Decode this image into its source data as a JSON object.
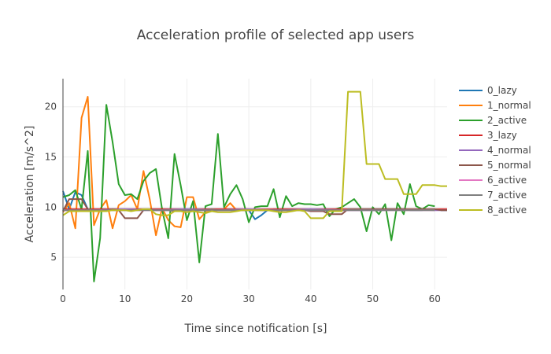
{
  "chart_data": {
    "type": "line",
    "title": "Acceleration profile of selected app users",
    "xlabel": "Time since notification [s]",
    "ylabel": "Acceleration [m/s^2]",
    "xlim": [
      0,
      62
    ],
    "ylim": [
      1.8,
      22.8
    ],
    "x_ticks": [
      0,
      10,
      20,
      30,
      40,
      50,
      60
    ],
    "y_ticks": [
      5,
      10,
      15,
      20
    ],
    "grid": true,
    "legend_position": "right",
    "series": [
      {
        "name": "0_lazy",
        "color": "#1f77b4",
        "x": [
          0,
          1,
          2,
          3,
          4,
          5,
          6,
          7,
          8,
          9,
          10,
          11,
          12,
          13,
          14,
          15,
          16,
          17,
          18,
          19,
          20,
          21,
          22,
          23,
          24,
          25,
          26,
          27,
          28,
          29,
          30,
          31,
          32,
          33,
          34,
          35,
          36,
          37,
          38,
          39,
          40,
          41,
          42,
          43,
          44,
          45,
          46,
          47,
          48,
          49,
          50,
          51,
          52,
          53,
          54,
          55,
          56,
          57,
          58,
          59,
          60,
          61,
          62
        ],
        "y": [
          11.6,
          9.8,
          11.5,
          11.2,
          9.8,
          9.8,
          9.8,
          9.8,
          9.8,
          9.8,
          9.8,
          9.8,
          9.8,
          9.8,
          9.8,
          9.8,
          9.8,
          9.8,
          9.8,
          9.8,
          9.8,
          9.8,
          9.8,
          9.8,
          9.8,
          9.8,
          9.8,
          9.8,
          9.8,
          9.8,
          9.7,
          8.8,
          9.2,
          9.7,
          9.8,
          9.8,
          9.8,
          9.8,
          9.8,
          9.8,
          9.8,
          9.8,
          9.8,
          9.8,
          9.8,
          9.8,
          9.8,
          9.8,
          9.8,
          9.8,
          9.8,
          9.8,
          9.8,
          9.8,
          9.8,
          9.8,
          9.7,
          9.7,
          9.7,
          9.8,
          9.8,
          9.7,
          9.7
        ]
      },
      {
        "name": "1_normal",
        "color": "#ff7f0e",
        "x": [
          0,
          1,
          2,
          3,
          4,
          5,
          6,
          7,
          8,
          9,
          10,
          11,
          12,
          13,
          14,
          15,
          16,
          17,
          18,
          19,
          20,
          21,
          22,
          23,
          24,
          25,
          26,
          27,
          28,
          29,
          30
        ],
        "y": [
          9.5,
          10.4,
          7.9,
          18.9,
          21.0,
          8.2,
          9.8,
          10.7,
          7.9,
          10.2,
          10.6,
          11.2,
          9.8,
          13.6,
          10.8,
          7.2,
          9.9,
          8.7,
          8.1,
          8.0,
          11.0,
          11.0,
          8.8,
          9.5,
          9.6,
          9.7,
          9.8,
          10.4,
          9.7,
          9.8,
          9.8
        ]
      },
      {
        "name": "2_active",
        "color": "#2ca02c",
        "x": [
          0,
          1,
          2,
          3,
          4,
          5,
          6,
          7,
          8,
          9,
          10,
          11,
          12,
          13,
          14,
          15,
          16,
          17,
          18,
          19,
          20,
          21,
          22,
          23,
          24,
          25,
          26,
          27,
          28,
          29,
          30,
          31,
          32,
          33,
          34,
          35,
          36,
          37,
          38,
          39,
          40,
          41,
          42,
          43,
          44,
          45,
          46,
          47,
          48,
          49,
          50,
          51,
          52,
          53,
          54,
          55,
          56,
          57,
          58,
          59,
          60
        ],
        "y": [
          11.0,
          11.2,
          11.7,
          9.8,
          15.6,
          2.6,
          6.9,
          20.2,
          16.5,
          12.3,
          11.2,
          11.3,
          10.8,
          12.6,
          13.4,
          13.8,
          9.8,
          6.9,
          15.3,
          12.2,
          8.7,
          10.6,
          4.5,
          10.1,
          10.3,
          17.3,
          10.0,
          11.3,
          12.2,
          10.8,
          8.5,
          10.0,
          10.1,
          10.1,
          11.8,
          9.0,
          11.1,
          10.1,
          10.4,
          10.3,
          10.3,
          10.2,
          10.3,
          9.1,
          9.8,
          10.0,
          10.4,
          10.8,
          10.0,
          7.6,
          10.0,
          9.3,
          10.3,
          6.7,
          10.4,
          9.3,
          12.3,
          10.1,
          9.8,
          10.2,
          10.1
        ]
      },
      {
        "name": "3_lazy",
        "color": "#d62728",
        "x": [
          0,
          5,
          10,
          15,
          20,
          25,
          30,
          35,
          40,
          45,
          50,
          55,
          60,
          62
        ],
        "y": [
          9.8,
          9.8,
          9.8,
          9.8,
          9.8,
          9.8,
          9.8,
          9.8,
          9.8,
          9.8,
          9.8,
          9.8,
          9.8,
          9.8
        ]
      },
      {
        "name": "4_normal",
        "color": "#9467bd",
        "x": [
          0,
          5,
          10,
          15,
          20,
          25,
          30,
          35,
          40,
          45,
          50,
          55,
          60,
          62
        ],
        "y": [
          9.7,
          9.7,
          9.8,
          9.7,
          9.8,
          9.7,
          9.8,
          9.7,
          9.8,
          9.7,
          9.7,
          9.8,
          9.7,
          9.7
        ]
      },
      {
        "name": "5_normal",
        "color": "#8c564b",
        "x": [
          0,
          1,
          2,
          3,
          4,
          5,
          6,
          7,
          8,
          9,
          10,
          11,
          12,
          13,
          14,
          15,
          16,
          17,
          18,
          19,
          20,
          21,
          22,
          23,
          24,
          25,
          26,
          27,
          28,
          29,
          30,
          31,
          32,
          33,
          34,
          35,
          36,
          37,
          38,
          39,
          40,
          41,
          42,
          43,
          44,
          45,
          46,
          47,
          48,
          49,
          50,
          51,
          52,
          53,
          54,
          55,
          56,
          57,
          58,
          59,
          60,
          61,
          62
        ],
        "y": [
          9.6,
          10.8,
          10.8,
          10.8,
          9.8,
          9.7,
          9.7,
          9.7,
          9.8,
          9.7,
          8.9,
          8.9,
          8.9,
          9.7,
          9.8,
          9.7,
          9.7,
          9.7,
          9.6,
          9.7,
          9.7,
          9.7,
          9.7,
          9.7,
          9.8,
          9.7,
          9.7,
          9.7,
          9.7,
          9.7,
          9.7,
          9.7,
          9.7,
          9.7,
          9.7,
          9.7,
          9.7,
          9.7,
          9.7,
          9.7,
          9.6,
          9.6,
          9.6,
          9.3,
          9.3,
          9.3,
          9.8,
          9.8,
          9.8,
          9.8,
          9.8,
          9.8,
          9.8,
          9.8,
          9.8,
          9.8,
          9.8,
          9.8,
          9.8,
          9.8,
          9.8,
          9.7,
          9.7
        ]
      },
      {
        "name": "6_active",
        "color": "#e377c2",
        "x": [
          0,
          5,
          10,
          15,
          20,
          25,
          30,
          35,
          40,
          45,
          50,
          55,
          60
        ],
        "y": [
          9.7,
          9.7,
          9.7,
          9.7,
          9.7,
          9.7,
          9.7,
          9.7,
          9.7,
          9.7,
          9.7,
          9.7,
          9.7
        ]
      },
      {
        "name": "7_active",
        "color": "#7f7f7f",
        "x": [
          0,
          5,
          10,
          15,
          20,
          25,
          30,
          35,
          40,
          45,
          50,
          55,
          60
        ],
        "y": [
          9.7,
          9.7,
          9.7,
          9.7,
          9.7,
          9.7,
          9.7,
          9.7,
          9.7,
          9.7,
          9.7,
          9.7,
          9.7
        ]
      },
      {
        "name": "8_active",
        "color": "#bcbd22",
        "x": [
          0,
          1,
          2,
          3,
          4,
          5,
          6,
          7,
          8,
          9,
          10,
          11,
          12,
          13,
          14,
          15,
          16,
          17,
          18,
          19,
          20,
          21,
          22,
          23,
          24,
          25,
          26,
          27,
          28,
          29,
          30,
          31,
          32,
          33,
          34,
          35,
          36,
          37,
          38,
          39,
          40,
          41,
          42,
          43,
          44,
          45,
          46,
          47,
          48,
          49,
          50,
          51,
          52,
          53,
          54,
          55,
          56,
          57,
          58,
          59,
          60,
          61,
          62
        ],
        "y": [
          9.2,
          9.6,
          9.6,
          9.6,
          9.6,
          9.6,
          9.6,
          9.6,
          9.7,
          9.7,
          9.7,
          9.6,
          9.7,
          9.8,
          9.8,
          9.3,
          9.2,
          9.2,
          9.6,
          9.6,
          9.5,
          9.6,
          9.5,
          9.4,
          9.6,
          9.5,
          9.5,
          9.5,
          9.6,
          9.7,
          9.7,
          9.7,
          9.7,
          9.7,
          9.6,
          9.5,
          9.5,
          9.6,
          9.7,
          9.6,
          8.9,
          8.9,
          8.9,
          9.6,
          9.6,
          9.6,
          21.5,
          21.5,
          21.5,
          14.3,
          14.3,
          14.3,
          12.8,
          12.8,
          12.8,
          11.3,
          11.3,
          11.3,
          12.2,
          12.2,
          12.2,
          12.1,
          12.1
        ]
      }
    ]
  }
}
